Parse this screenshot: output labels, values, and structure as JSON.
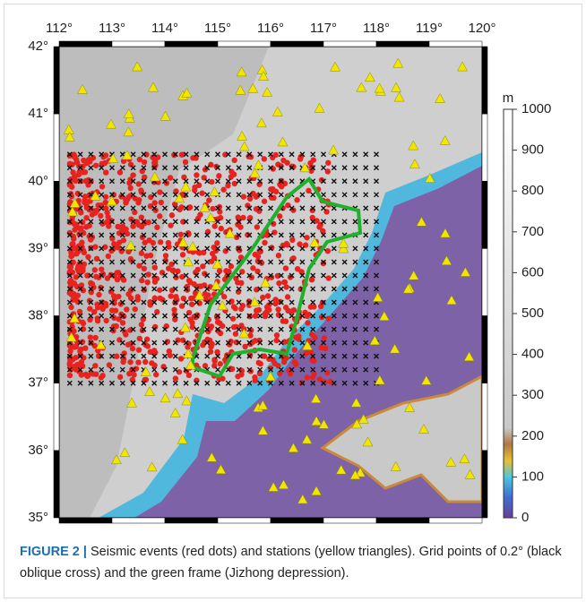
{
  "map": {
    "x_ticks": [
      "112°",
      "113°",
      "114°",
      "115°",
      "116°",
      "117°",
      "118°",
      "119°",
      "120°"
    ],
    "y_ticks": [
      "42°",
      "41°",
      "40°",
      "39°",
      "38°",
      "37°",
      "36°",
      "35°"
    ]
  },
  "colorbar": {
    "unit": "m",
    "ticks": [
      1000,
      900,
      800,
      700,
      600,
      500,
      400,
      300,
      200,
      100,
      0
    ]
  },
  "caption": {
    "label": "FIGURE 2 |",
    "text": "Seismic events (red dots) and stations (yellow triangles). Grid points of 0.2° (black oblique cross) and the green frame (Jizhong depression)."
  }
}
